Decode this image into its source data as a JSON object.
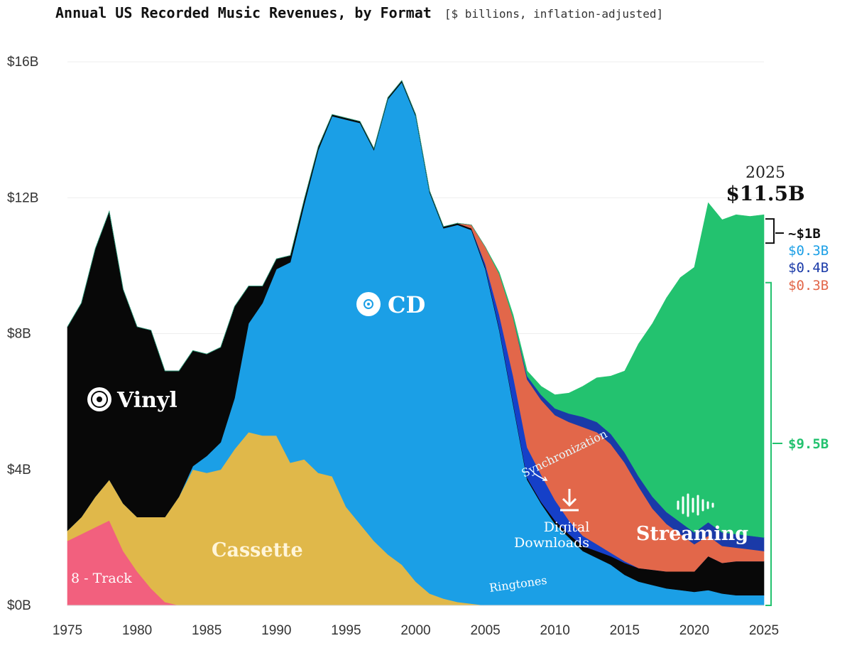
{
  "title": {
    "main": "Annual US Recorded Music Revenues, by Format",
    "sub": "[$ billions, inflation-adjusted]"
  },
  "chart_data": {
    "type": "area",
    "stacked": true,
    "title": "Annual US Recorded Music Revenues, by Format",
    "subtitle": "[$ billions, inflation-adjusted]",
    "xlim": [
      1975,
      2025
    ],
    "ylim": [
      0,
      16
    ],
    "x_ticks": [
      "1975",
      "1980",
      "1985",
      "1990",
      "1995",
      "2000",
      "2005",
      "2010",
      "2015",
      "2020",
      "2025"
    ],
    "y_ticks": [
      "$0B",
      "$4B",
      "$8B",
      "$12B",
      "$16B"
    ],
    "y_tick_values": [
      0,
      4,
      8,
      12,
      16
    ],
    "x_tick_values": [
      1975,
      1980,
      1985,
      1990,
      1995,
      2000,
      2005,
      2010,
      2015,
      2020,
      2025
    ],
    "years": [
      1975,
      1976,
      1977,
      1978,
      1979,
      1980,
      1981,
      1982,
      1983,
      1984,
      1985,
      1986,
      1987,
      1988,
      1989,
      1990,
      1991,
      1992,
      1993,
      1994,
      1995,
      1996,
      1997,
      1998,
      1999,
      2000,
      2001,
      2002,
      2003,
      2004,
      2005,
      2006,
      2007,
      2008,
      2009,
      2010,
      2011,
      2012,
      2013,
      2014,
      2015,
      2016,
      2017,
      2018,
      2019,
      2020,
      2021,
      2022,
      2023,
      2024,
      2025
    ],
    "series": [
      {
        "name": "8 - Track",
        "color": "#f2607e",
        "values": [
          1.9,
          2.1,
          2.3,
          2.5,
          1.6,
          1.0,
          0.5,
          0.1,
          0,
          0,
          0,
          0,
          0,
          0,
          0,
          0,
          0,
          0,
          0,
          0,
          0,
          0,
          0,
          0,
          0,
          0,
          0,
          0,
          0,
          0,
          0,
          0,
          0,
          0,
          0,
          0,
          0,
          0,
          0,
          0,
          0,
          0,
          0,
          0,
          0,
          0,
          0,
          0,
          0,
          0,
          0
        ]
      },
      {
        "name": "Cassette",
        "color": "#e0b84a",
        "values": [
          0.3,
          0.5,
          0.9,
          1.2,
          1.4,
          1.6,
          2.1,
          2.5,
          3.2,
          4.0,
          3.9,
          4.0,
          4.6,
          5.1,
          5.0,
          5.0,
          4.2,
          4.3,
          3.9,
          3.8,
          2.9,
          2.4,
          1.9,
          1.5,
          1.2,
          0.7,
          0.35,
          0.2,
          0.1,
          0.05,
          0,
          0,
          0,
          0,
          0,
          0,
          0,
          0,
          0,
          0,
          0,
          0,
          0,
          0,
          0,
          0,
          0,
          0,
          0,
          0,
          0
        ]
      },
      {
        "name": "CD",
        "color": "#1b9fe6",
        "values": [
          0,
          0,
          0,
          0,
          0,
          0,
          0,
          0,
          0,
          0.1,
          0.5,
          0.8,
          1.5,
          3.2,
          3.9,
          4.9,
          5.9,
          7.5,
          9.5,
          10.6,
          11.4,
          11.8,
          11.5,
          13.4,
          14.2,
          13.7,
          11.8,
          10.9,
          11.1,
          11.0,
          9.9,
          8.1,
          5.9,
          3.7,
          3.0,
          2.4,
          2.0,
          1.6,
          1.4,
          1.2,
          0.9,
          0.7,
          0.6,
          0.5,
          0.45,
          0.4,
          0.45,
          0.35,
          0.3,
          0.3,
          0.3
        ]
      },
      {
        "name": "Vinyl",
        "color": "#080808",
        "values": [
          6.0,
          6.3,
          7.3,
          7.9,
          6.3,
          5.6,
          5.5,
          4.3,
          3.7,
          3.4,
          3.0,
          2.8,
          2.7,
          1.1,
          0.5,
          0.3,
          0.2,
          0.15,
          0.1,
          0.05,
          0.05,
          0.05,
          0.05,
          0.05,
          0.05,
          0.05,
          0.05,
          0.05,
          0.05,
          0.05,
          0.05,
          0.05,
          0.05,
          0.05,
          0.05,
          0.1,
          0.1,
          0.15,
          0.2,
          0.25,
          0.35,
          0.4,
          0.45,
          0.5,
          0.55,
          0.6,
          1.0,
          0.9,
          1.0,
          1.0,
          1.0
        ]
      },
      {
        "name": "Ringtones",
        "color": "#1540c8",
        "values": [
          0,
          0,
          0,
          0,
          0,
          0,
          0,
          0,
          0,
          0,
          0,
          0,
          0,
          0,
          0,
          0,
          0,
          0,
          0,
          0,
          0,
          0,
          0,
          0,
          0,
          0,
          0,
          0,
          0,
          0,
          0.1,
          0.4,
          0.8,
          0.9,
          0.8,
          0.6,
          0.4,
          0.3,
          0.2,
          0.1,
          0.05,
          0,
          0,
          0,
          0,
          0,
          0,
          0,
          0,
          0,
          0
        ]
      },
      {
        "name": "Digital Downloads",
        "color": "#e2674a",
        "values": [
          0,
          0,
          0,
          0,
          0,
          0,
          0,
          0,
          0,
          0,
          0,
          0,
          0,
          0,
          0,
          0,
          0,
          0,
          0,
          0,
          0,
          0,
          0,
          0,
          0,
          0,
          0,
          0,
          0,
          0.1,
          0.5,
          1.2,
          1.7,
          2.0,
          2.2,
          2.5,
          2.9,
          3.2,
          3.3,
          3.2,
          2.9,
          2.4,
          1.8,
          1.4,
          1.1,
          0.8,
          0.6,
          0.5,
          0.4,
          0.35,
          0.3
        ]
      },
      {
        "name": "Synchronization",
        "color": "#1a3aa8",
        "values": [
          0,
          0,
          0,
          0,
          0,
          0,
          0,
          0,
          0,
          0,
          0,
          0,
          0,
          0,
          0,
          0,
          0,
          0,
          0,
          0,
          0,
          0,
          0,
          0,
          0,
          0,
          0,
          0,
          0,
          0,
          0,
          0,
          0,
          0.1,
          0.15,
          0.2,
          0.25,
          0.3,
          0.3,
          0.3,
          0.3,
          0.3,
          0.35,
          0.35,
          0.35,
          0.35,
          0.4,
          0.4,
          0.4,
          0.4,
          0.4
        ]
      },
      {
        "name": "Streaming",
        "color": "#23c26f",
        "values": [
          0,
          0,
          0,
          0,
          0,
          0,
          0,
          0,
          0,
          0,
          0,
          0,
          0,
          0,
          0,
          0,
          0,
          0,
          0,
          0,
          0,
          0,
          0,
          0,
          0,
          0,
          0,
          0,
          0,
          0,
          0,
          0.05,
          0.1,
          0.15,
          0.25,
          0.4,
          0.6,
          0.9,
          1.3,
          1.7,
          2.4,
          3.9,
          5.1,
          6.3,
          7.2,
          7.8,
          9.4,
          9.2,
          9.4,
          9.4,
          9.5
        ]
      }
    ],
    "labels": {
      "vinyl": "Vinyl",
      "cd": "CD",
      "cassette": "Cassette",
      "eight_track": "8 - Track",
      "streaming": "Streaming",
      "downloads_line1": "Digital",
      "downloads_line2": "Downloads",
      "ringtones": "Ringtones",
      "sync": "Synchronization"
    },
    "annotations": {
      "year": "2025",
      "total": "$11.5B",
      "vinyl_value": "~$1B",
      "cd_value": "$0.3B",
      "sync_value": "$0.4B",
      "downloads_value": "$0.3B",
      "streaming_value": "$9.5B"
    },
    "colors": {
      "vinyl": "#080808",
      "cd": "#1b9fe6",
      "cassette": "#e0b84a",
      "eight_track": "#f2607e",
      "streaming": "#23c26f",
      "downloads": "#e2674a",
      "ringtones": "#1540c8",
      "sync": "#1a3aa8"
    },
    "grid": false,
    "legend": "inline labels"
  }
}
